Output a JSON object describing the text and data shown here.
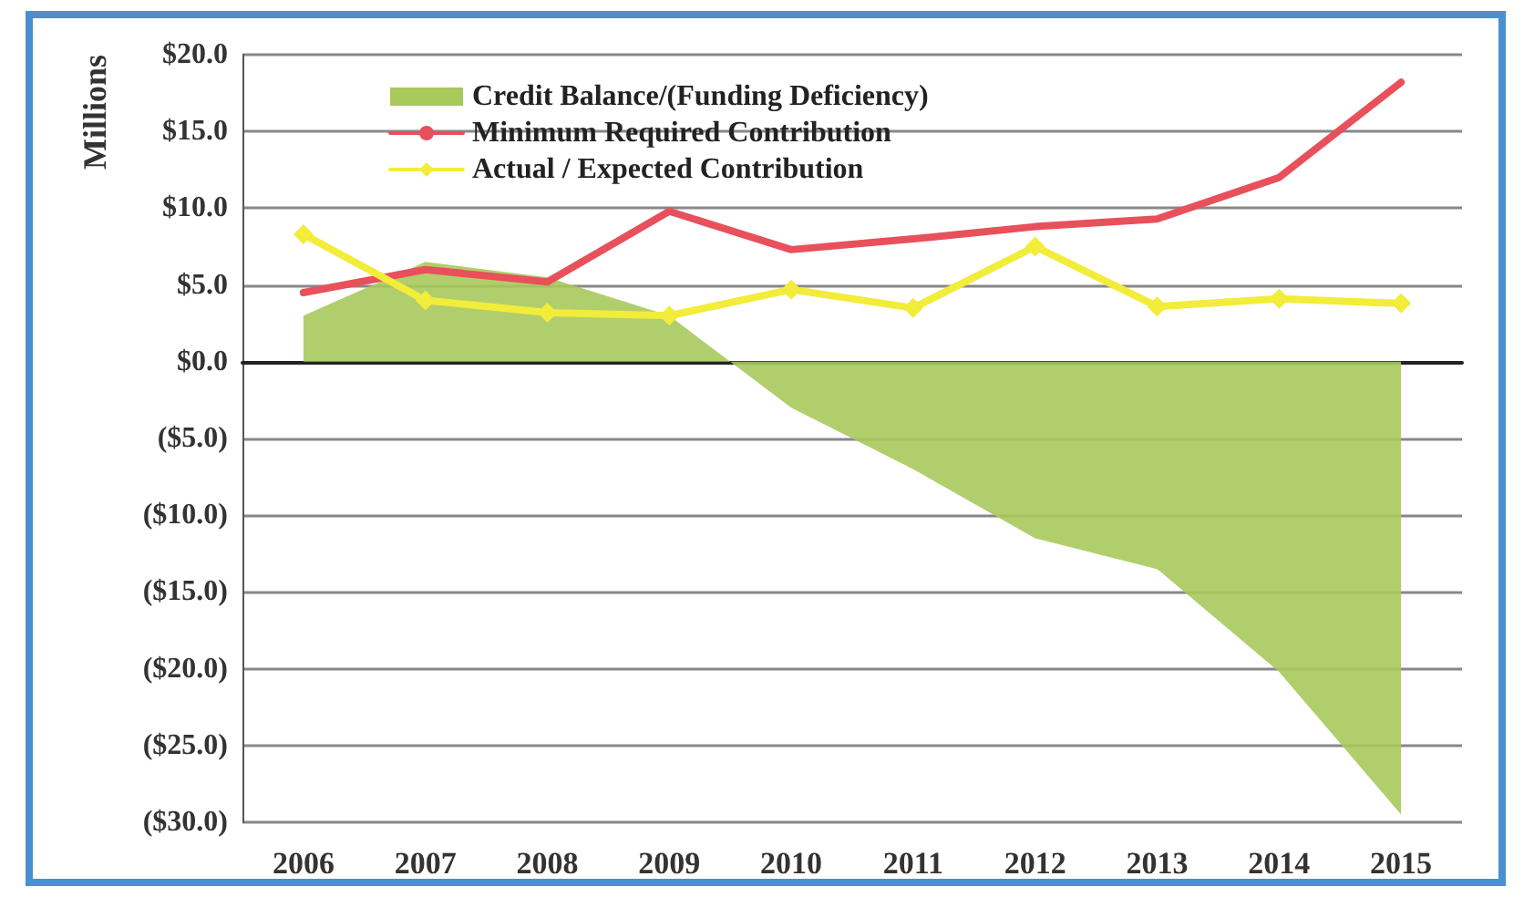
{
  "chart_data": {
    "type": "line",
    "ylabel": "Millions",
    "categories": [
      "2006",
      "2007",
      "2008",
      "2009",
      "2010",
      "2011",
      "2012",
      "2013",
      "2014",
      "2015"
    ],
    "series": [
      {
        "name": "Credit Balance/(Funding Deficiency)",
        "type": "area",
        "color": "#a9c95c",
        "values": [
          3.0,
          6.5,
          5.5,
          3.0,
          -3.0,
          -7.0,
          -11.5,
          -13.5,
          -20.2,
          -29.5
        ]
      },
      {
        "name": "Minimum Required Contribution",
        "type": "line",
        "color": "#e8505b",
        "marker": "none",
        "values": [
          4.5,
          6.0,
          5.2,
          9.8,
          7.3,
          8.0,
          8.8,
          9.3,
          12.0,
          18.2
        ]
      },
      {
        "name": "Actual / Expected Contribution",
        "type": "line",
        "color": "#f2ec3a",
        "marker": "diamond",
        "values": [
          8.3,
          4.0,
          3.2,
          3.0,
          4.7,
          3.5,
          7.5,
          3.6,
          4.1,
          3.8
        ]
      }
    ],
    "ylim": [
      -30,
      20
    ],
    "yticks": [
      {
        "value": -30,
        "label": "($30.0)"
      },
      {
        "value": -25,
        "label": "($25.0)"
      },
      {
        "value": -20,
        "label": "($20.0)"
      },
      {
        "value": -15,
        "label": "($15.0)"
      },
      {
        "value": -10,
        "label": "($10.0)"
      },
      {
        "value": -5,
        "label": "($5.0)"
      },
      {
        "value": 0,
        "label": "$0.0"
      },
      {
        "value": 5,
        "label": "$5.0"
      },
      {
        "value": 10,
        "label": "$10.0"
      },
      {
        "value": 15,
        "label": "$15.0"
      },
      {
        "value": 20,
        "label": "$20.0"
      }
    ],
    "grid": "y",
    "legend": "top left"
  }
}
